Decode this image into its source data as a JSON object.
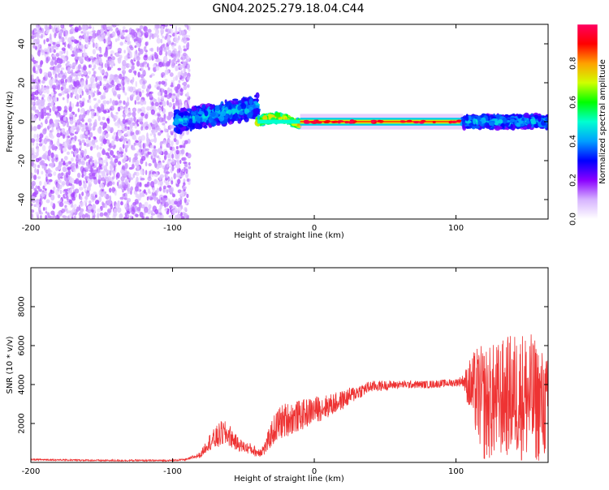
{
  "page": {
    "title": "GN04.2025.279.18.04.C44"
  },
  "chart_data": [
    {
      "type": "heatmap",
      "title": "GN04.2025.279.18.04.C44",
      "xlabel": "Height of straight line (km)",
      "ylabel": "Frequency (Hz)",
      "xlim": [
        -200,
        165
      ],
      "ylim": [
        -50,
        50
      ],
      "xticks": [
        "-200",
        "-100",
        "0",
        "100"
      ],
      "xtick_values": [
        -200,
        -100,
        0,
        100
      ],
      "yticks": [
        "-40",
        "-20",
        "0",
        "20",
        "40"
      ],
      "ytick_values": [
        -40,
        -20,
        0,
        20,
        40
      ],
      "colorbar": {
        "label": "Normalized spectral amplitude",
        "range": [
          0,
          1
        ],
        "ticks": [
          "0.0",
          "0.2",
          "0.4",
          "0.6",
          "0.8"
        ],
        "tick_values": [
          0.0,
          0.2,
          0.4,
          0.6,
          0.8
        ],
        "colors": [
          "#ffffff",
          "#d6b3ff",
          "#8a00ff",
          "#0000ff",
          "#00a0ff",
          "#00ffd0",
          "#00ff00",
          "#d0ff00",
          "#ffa000",
          "#ff0000",
          "#ff0060"
        ]
      },
      "regions": [
        {
          "name": "noise",
          "x": [
            -200,
            -88
          ],
          "freq": [
            -50,
            50
          ],
          "amplitude": 0.12
        },
        {
          "name": "onset",
          "x": [
            -98,
            -40
          ],
          "freq": [
            -8,
            12
          ],
          "amplitude": 0.3
        },
        {
          "name": "transition",
          "x": [
            -40,
            -10
          ],
          "freq": [
            -3,
            5
          ],
          "amplitude": 0.55
        },
        {
          "name": "steady",
          "x": [
            -10,
            105
          ],
          "freq": [
            -2,
            2
          ],
          "amplitude": 0.85
        },
        {
          "name": "turbulent",
          "x": [
            105,
            165
          ],
          "freq": [
            -6,
            6
          ],
          "amplitude": 0.3
        }
      ]
    },
    {
      "type": "line",
      "xlabel": "Height of straight line (km)",
      "ylabel": "SNR (10 * v/v)",
      "xlim": [
        -200,
        165
      ],
      "ylim": [
        0,
        10000
      ],
      "xticks": [
        "-200",
        "-100",
        "0",
        "100"
      ],
      "xtick_values": [
        -200,
        -100,
        0,
        100
      ],
      "yticks": [
        "2000",
        "4000",
        "6000",
        "8000"
      ],
      "ytick_values": [
        2000,
        4000,
        6000,
        8000
      ],
      "series": [
        {
          "name": "SNR",
          "color": "#ee3333",
          "x": [
            -200,
            -150,
            -100,
            -90,
            -80,
            -75,
            -70,
            -65,
            -60,
            -55,
            -50,
            -45,
            -40,
            -35,
            -30,
            -25,
            -20,
            -10,
            0,
            10,
            20,
            30,
            40,
            60,
            80,
            100,
            105,
            110,
            115,
            120,
            130,
            140,
            150,
            160,
            165
          ],
          "y": [
            150,
            100,
            100,
            150,
            400,
            1000,
            1200,
            1500,
            1400,
            1000,
            800,
            700,
            500,
            700,
            1500,
            2000,
            2200,
            2400,
            2700,
            2900,
            3200,
            3600,
            3900,
            4000,
            4000,
            4100,
            4200,
            3900,
            3500,
            3000,
            3200,
            3500,
            3400,
            3000,
            2800
          ],
          "jitter": [
            40,
            40,
            40,
            50,
            150,
            400,
            600,
            700,
            600,
            400,
            300,
            300,
            250,
            350,
            700,
            900,
            900,
            800,
            700,
            600,
            500,
            400,
            300,
            200,
            200,
            200,
            300,
            1500,
            2500,
            3000,
            3000,
            3200,
            3500,
            3000,
            2500
          ]
        }
      ]
    }
  ]
}
